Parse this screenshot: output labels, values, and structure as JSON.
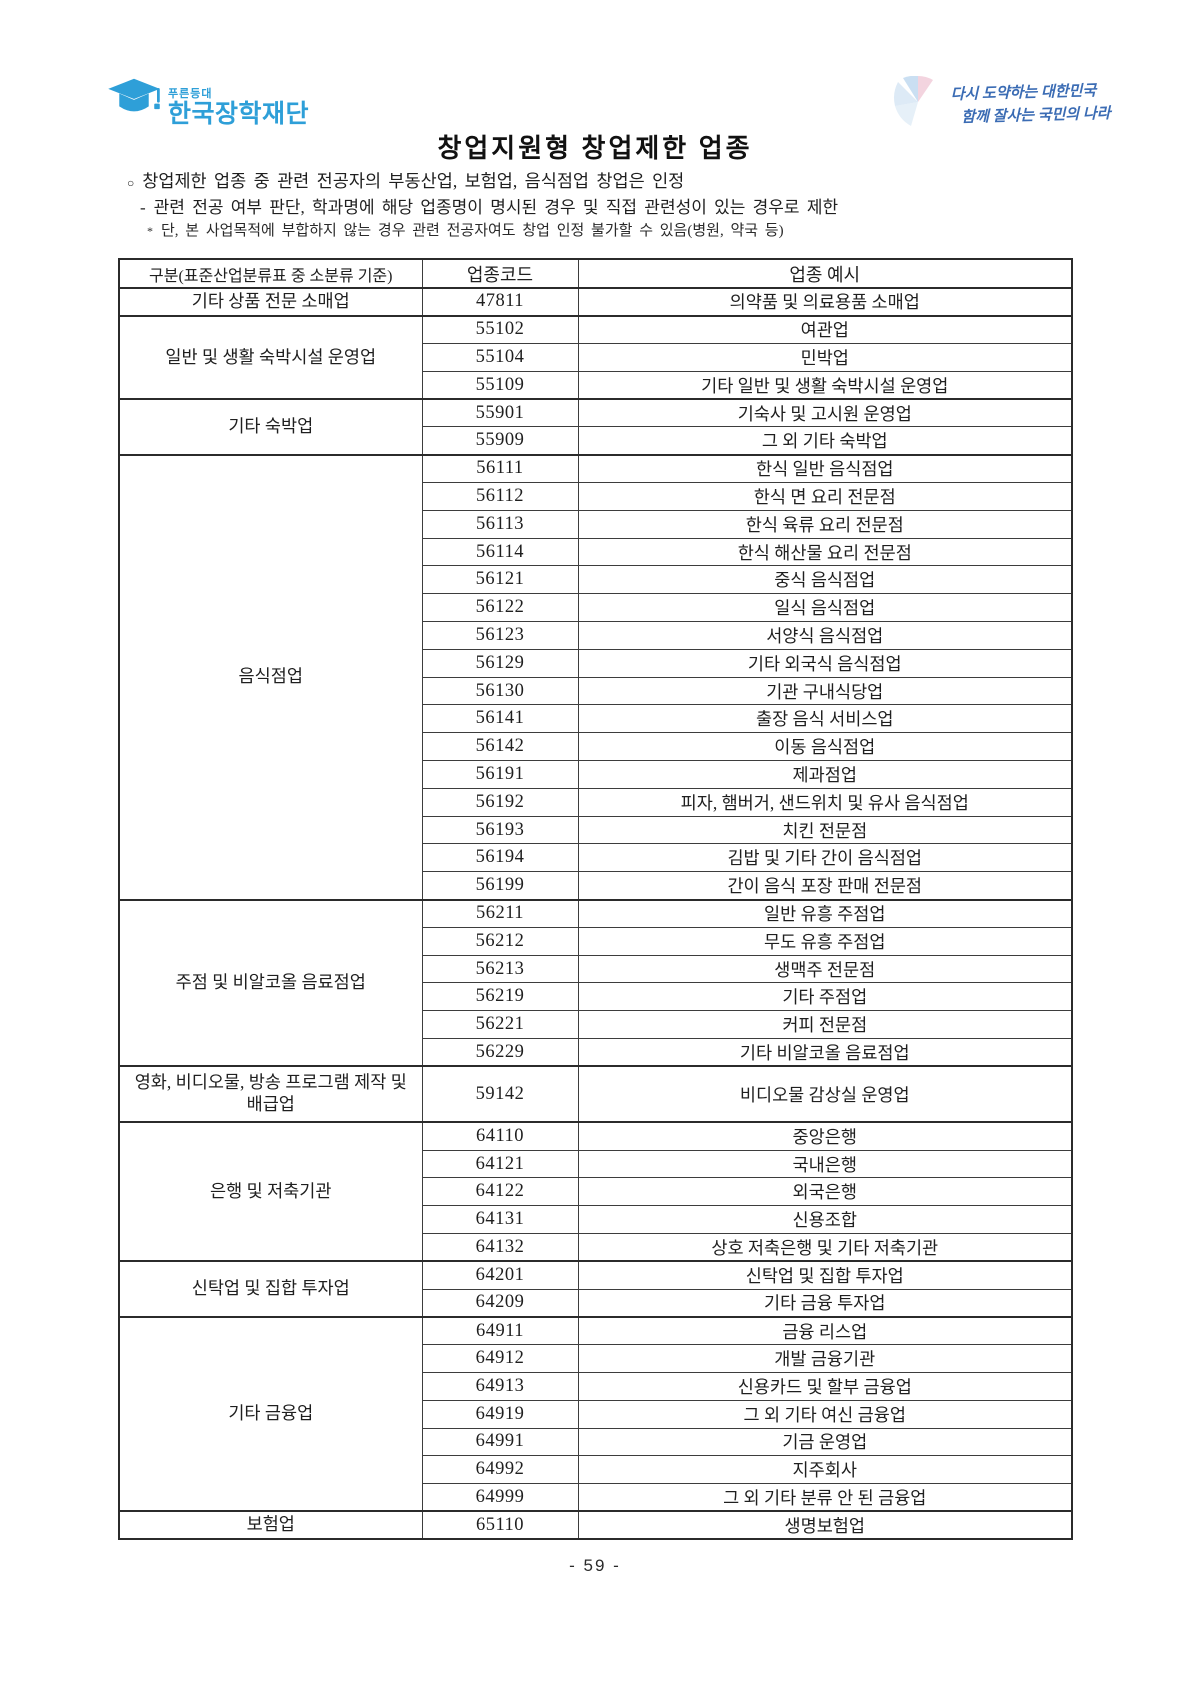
{
  "page": {
    "title": "창업지원형 창업제한 업종",
    "page_number": "- 59 -"
  },
  "header": {
    "logo": {
      "brand_small": "푸른등대",
      "brand_large": "한국장학재단",
      "color": "#2e9fd8",
      "icon": "graduation-cap-icon"
    },
    "slogan": {
      "line1": "다시 도약하는 대한민국",
      "line2": "함께 잘사는 국민의 나라",
      "color": "#3b6cb4",
      "icon": "fan-emblem-icon"
    }
  },
  "notes": [
    {
      "marker": "○",
      "text": "창업제한 업종 중 관련 전공자의 부동산업, 보험업, 음식점업 창업은 인정"
    },
    {
      "marker": "-",
      "text": "관련 전공 여부 판단, 학과명에 해당 업종명이 명시된 경우 및 직접 관련성이 있는 경우로 제한"
    },
    {
      "marker": "*",
      "text": "단, 본 사업목적에 부합하지 않는 경우 관련 전공자여도 창업 인정 불가할 수 있음(병원, 약국 등)"
    }
  ],
  "table": {
    "headers": [
      "구분(표준산업분류표 중 소분류 기준)",
      "업종코드",
      "업종 예시"
    ],
    "groups": [
      {
        "category": "기타 상품 전문 소매업",
        "rows": [
          [
            "47811",
            "의약품 및 의료용품 소매업"
          ]
        ]
      },
      {
        "category": "일반 및 생활 숙박시설 운영업",
        "rows": [
          [
            "55102",
            "여관업"
          ],
          [
            "55104",
            "민박업"
          ],
          [
            "55109",
            "기타 일반 및 생활 숙박시설 운영업"
          ]
        ]
      },
      {
        "category": "기타 숙박업",
        "rows": [
          [
            "55901",
            "기숙사 및 고시원 운영업"
          ],
          [
            "55909",
            "그 외 기타 숙박업"
          ]
        ]
      },
      {
        "category": "음식점업",
        "rows": [
          [
            "56111",
            "한식 일반 음식점업"
          ],
          [
            "56112",
            "한식 면 요리 전문점"
          ],
          [
            "56113",
            "한식 육류 요리 전문점"
          ],
          [
            "56114",
            "한식 해산물 요리 전문점"
          ],
          [
            "56121",
            "중식 음식점업"
          ],
          [
            "56122",
            "일식 음식점업"
          ],
          [
            "56123",
            "서양식 음식점업"
          ],
          [
            "56129",
            "기타 외국식 음식점업"
          ],
          [
            "56130",
            "기관 구내식당업"
          ],
          [
            "56141",
            "출장 음식 서비스업"
          ],
          [
            "56142",
            "이동 음식점업"
          ],
          [
            "56191",
            "제과점업"
          ],
          [
            "56192",
            "피자, 햄버거, 샌드위치 및 유사 음식점업"
          ],
          [
            "56193",
            "치킨 전문점"
          ],
          [
            "56194",
            "김밥 및 기타 간이 음식점업"
          ],
          [
            "56199",
            "간이 음식 포장 판매 전문점"
          ]
        ]
      },
      {
        "category": "주점 및 비알코올 음료점업",
        "rows": [
          [
            "56211",
            "일반 유흥 주점업"
          ],
          [
            "56212",
            "무도 유흥 주점업"
          ],
          [
            "56213",
            "생맥주 전문점"
          ],
          [
            "56219",
            "기타 주점업"
          ],
          [
            "56221",
            "커피 전문점"
          ],
          [
            "56229",
            "기타 비알코올 음료점업"
          ]
        ]
      },
      {
        "category": "영화, 비디오물, 방송 프로그램 제작 및 배급업",
        "tall": true,
        "rows": [
          [
            "59142",
            "비디오물 감상실 운영업"
          ]
        ]
      },
      {
        "category": "은행 및 저축기관",
        "rows": [
          [
            "64110",
            "중앙은행"
          ],
          [
            "64121",
            "국내은행"
          ],
          [
            "64122",
            "외국은행"
          ],
          [
            "64131",
            "신용조합"
          ],
          [
            "64132",
            "상호 저축은행 및 기타 저축기관"
          ]
        ]
      },
      {
        "category": "신탁업 및 집합 투자업",
        "rows": [
          [
            "64201",
            "신탁업 및 집합 투자업"
          ],
          [
            "64209",
            "기타 금융 투자업"
          ]
        ]
      },
      {
        "category": "기타 금융업",
        "rows": [
          [
            "64911",
            "금융 리스업"
          ],
          [
            "64912",
            "개발 금융기관"
          ],
          [
            "64913",
            "신용카드 및 할부 금융업"
          ],
          [
            "64919",
            "그 외 기타 여신 금융업"
          ],
          [
            "64991",
            "기금 운영업"
          ],
          [
            "64992",
            "지주회사"
          ],
          [
            "64999",
            "그 외 기타 분류 안 된 금융업"
          ]
        ]
      },
      {
        "category": "보험업",
        "rows": [
          [
            "65110",
            "생명보험업"
          ]
        ]
      }
    ]
  }
}
